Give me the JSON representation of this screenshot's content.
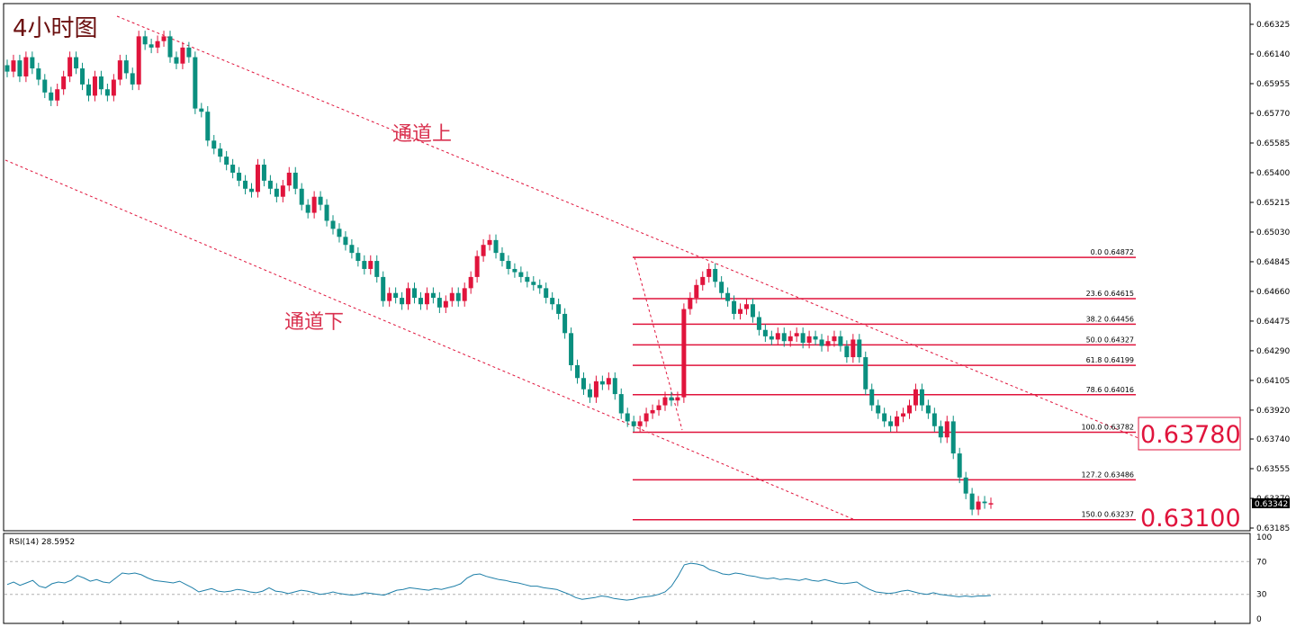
{
  "title": "4小时图",
  "channel_labels": {
    "upper": "通道上",
    "lower": "通道下"
  },
  "current_price": "0.63342",
  "callouts": [
    "0.63780",
    "0.63100"
  ],
  "rsi_label": "RSI(14) 28.5952",
  "colors": {
    "bull": "#e0143c",
    "bear": "#0a8f7f",
    "fib": "#e0143c",
    "channel": "#e0143c",
    "rsi_line": "#1e7fa8",
    "grid": "#b0b0b0"
  },
  "chart_data": {
    "type": "candlestick",
    "title": "4小时图",
    "price_axis": {
      "ticks": [
        "0.66325",
        "0.66140",
        "0.65955",
        "0.65770",
        "0.65585",
        "0.65400",
        "0.65215",
        "0.65030",
        "0.64845",
        "0.64660",
        "0.64475",
        "0.64290",
        "0.64105",
        "0.63920",
        "0.63740",
        "0.63555",
        "0.63370",
        "0.63185"
      ],
      "range": [
        0.631,
        0.664
      ]
    },
    "fibonacci": [
      {
        "label": "0.0  0.64872",
        "price": 0.64872
      },
      {
        "label": "23.6  0.64615",
        "price": 0.64615
      },
      {
        "label": "38.2  0.64456",
        "price": 0.64456
      },
      {
        "label": "50.0  0.64327",
        "price": 0.64327
      },
      {
        "label": "61.8  0.64199",
        "price": 0.64199
      },
      {
        "label": "78.6  0.64016",
        "price": 0.64016
      },
      {
        "label": "100.0  0.63782",
        "price": 0.63782
      },
      {
        "label": "127.2  0.63486",
        "price": 0.63486
      },
      {
        "label": "150.0  0.63237",
        "price": 0.63237
      }
    ],
    "candles_close": [
      0.6603,
      0.661,
      0.66,
      0.6612,
      0.6605,
      0.6598,
      0.659,
      0.6585,
      0.6592,
      0.66,
      0.6612,
      0.6605,
      0.6595,
      0.6588,
      0.66,
      0.6592,
      0.6588,
      0.6598,
      0.661,
      0.6602,
      0.6595,
      0.6625,
      0.662,
      0.6618,
      0.6622,
      0.6625,
      0.6612,
      0.6608,
      0.6618,
      0.6612,
      0.658,
      0.6578,
      0.656,
      0.6555,
      0.655,
      0.6545,
      0.654,
      0.6535,
      0.653,
      0.6528,
      0.6545,
      0.6535,
      0.653,
      0.6525,
      0.6532,
      0.654,
      0.653,
      0.652,
      0.6515,
      0.6525,
      0.652,
      0.651,
      0.6505,
      0.65,
      0.6495,
      0.649,
      0.6485,
      0.648,
      0.6485,
      0.6475,
      0.646,
      0.6465,
      0.6462,
      0.6458,
      0.6468,
      0.6462,
      0.6458,
      0.6465,
      0.6462,
      0.6456,
      0.646,
      0.6465,
      0.646,
      0.6468,
      0.6475,
      0.6488,
      0.6495,
      0.6498,
      0.649,
      0.6485,
      0.648,
      0.6478,
      0.6475,
      0.6472,
      0.647,
      0.6468,
      0.6462,
      0.6458,
      0.6452,
      0.644,
      0.642,
      0.6412,
      0.6405,
      0.64,
      0.641,
      0.6408,
      0.6412,
      0.6402,
      0.639,
      0.6385,
      0.6382,
      0.6385,
      0.639,
      0.6392,
      0.6395,
      0.64,
      0.6398,
      0.64,
      0.6455,
      0.6462,
      0.647,
      0.6475,
      0.648,
      0.6472,
      0.6465,
      0.646,
      0.6452,
      0.6455,
      0.6458,
      0.645,
      0.6442,
      0.6438,
      0.6436,
      0.644,
      0.6435,
      0.6438,
      0.644,
      0.6434,
      0.6438,
      0.6436,
      0.6432,
      0.6435,
      0.6438,
      0.6432,
      0.6425,
      0.6436,
      0.6425,
      0.6405,
      0.6395,
      0.639,
      0.6385,
      0.6382,
      0.6388,
      0.639,
      0.6395,
      0.6405,
      0.6395,
      0.639,
      0.6382,
      0.6375,
      0.6385,
      0.6365,
      0.635,
      0.634,
      0.633,
      0.6335,
      0.6334,
      0.6334
    ],
    "rsi": {
      "label": "RSI(14) 28.5952",
      "value": 28.5952,
      "levels": [
        "100",
        "70",
        "30",
        "0"
      ],
      "series": [
        42,
        45,
        41,
        44,
        47,
        40,
        38,
        43,
        45,
        44,
        47,
        53,
        50,
        46,
        48,
        45,
        44,
        50,
        56,
        55,
        56,
        54,
        50,
        47,
        46,
        45,
        44,
        46,
        42,
        38,
        33,
        35,
        37,
        34,
        33,
        34,
        36,
        35,
        33,
        32,
        34,
        38,
        34,
        33,
        31,
        33,
        35,
        34,
        32,
        30,
        31,
        33,
        31,
        30,
        29,
        30,
        32,
        31,
        30,
        29,
        32,
        35,
        36,
        38,
        37,
        36,
        35,
        37,
        36,
        38,
        40,
        43,
        50,
        54,
        55,
        52,
        50,
        48,
        47,
        45,
        44,
        42,
        40,
        40,
        38,
        37,
        36,
        33,
        30,
        26,
        24,
        25,
        26,
        28,
        27,
        25,
        24,
        23,
        24,
        26,
        27,
        28,
        30,
        33,
        40,
        52,
        66,
        68,
        67,
        65,
        60,
        58,
        55,
        54,
        56,
        55,
        53,
        52,
        50,
        49,
        50,
        48,
        49,
        48,
        47,
        49,
        47,
        46,
        48,
        46,
        44,
        43,
        44,
        45,
        40,
        36,
        33,
        32,
        31,
        32,
        34,
        35,
        33,
        31,
        30,
        32,
        30,
        29,
        28,
        27,
        28,
        27,
        28,
        28,
        28.6
      ]
    }
  }
}
